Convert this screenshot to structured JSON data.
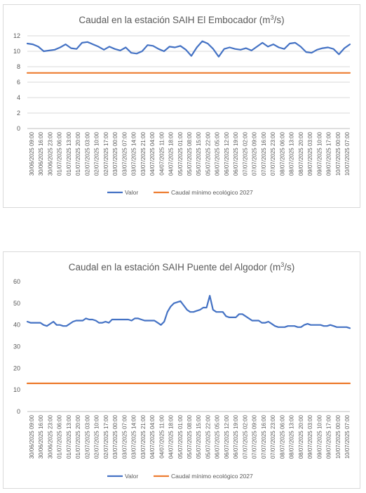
{
  "chart_data": [
    {
      "type": "line",
      "title": "Caudal en la estación SAIH El Embocador (m³/s)",
      "title_main": "Caudal en la estación SAIH El Embocador (m",
      "title_sup": "3",
      "title_end": "/s)",
      "ylim": [
        0,
        12
      ],
      "yticks": [
        "0",
        "2",
        "4",
        "6",
        "8",
        "10",
        "12"
      ],
      "grid": true,
      "legend": "bottom",
      "x_labels": [
        "30/06/2025 09:00",
        "30/06/2025 16:00",
        "30/06/2025 23:00",
        "01/07/2025 06:00",
        "01/07/2025 13:00",
        "01/07/2025 20:00",
        "02/07/2025 03:00",
        "02/07/2025 10:00",
        "02/07/2025 17:00",
        "03/07/2025 00:00",
        "03/07/2025 07:00",
        "03/07/2025 14:00",
        "03/07/2025 21:00",
        "04/07/2025 04:00",
        "04/07/2025 11:00",
        "04/07/2025 18:00",
        "05/07/2025 01:00",
        "05/07/2025 08:00",
        "05/07/2025 15:00",
        "05/07/2025 22:00",
        "06/07/2025 05:00",
        "06/07/2025 12:00",
        "06/07/2025 19:00",
        "07/07/2025 02:00",
        "07/07/2025 09:00",
        "07/07/2025 16:00",
        "07/07/2025 23:00",
        "08/07/2025 06:00",
        "08/07/2025 13:00",
        "08/07/2025 20:00",
        "09/07/2025 03:00",
        "09/07/2025 10:00",
        "09/07/2025 17:00",
        "10/07/2025 00:00",
        "10/07/2025 07:00"
      ],
      "series": [
        {
          "name": "Valor",
          "color": "#4472c4",
          "values": [
            11.0,
            10.9,
            10.6,
            10.0,
            10.1,
            10.2,
            10.5,
            10.9,
            10.4,
            10.3,
            11.1,
            11.2,
            10.9,
            10.6,
            10.2,
            10.6,
            10.3,
            10.1,
            10.5,
            9.8,
            9.7,
            10.0,
            10.8,
            10.7,
            10.3,
            10.0,
            10.6,
            10.5,
            10.7,
            10.2,
            9.4,
            10.5,
            11.3,
            11.0,
            10.3,
            9.3,
            10.3,
            10.5,
            10.3,
            10.2,
            10.4,
            10.1,
            10.6,
            11.1,
            10.6,
            10.9,
            10.5,
            10.3,
            11.0,
            11.1,
            10.6,
            9.9,
            9.8,
            10.2,
            10.4,
            10.5,
            10.3,
            9.6,
            10.4,
            10.9
          ]
        },
        {
          "name": "Caudal mínimo ecológico 2027",
          "color": "#ed7d31",
          "values": [
            7.2,
            7.2
          ]
        }
      ]
    },
    {
      "type": "line",
      "title": "Caudal en la estación SAIH Puente del Algodor (m³/s)",
      "title_main": "Caudal en la estación SAIH Puente del Algodor (m",
      "title_sup": "3",
      "title_end": "/s)",
      "ylim": [
        0,
        60
      ],
      "yticks": [
        "0",
        "10",
        "20",
        "30",
        "40",
        "50",
        "60"
      ],
      "grid": false,
      "legend": "bottom",
      "x_labels": [
        "30/06/2025 09:00",
        "30/06/2025 16:00",
        "30/06/2025 23:00",
        "01/07/2025 06:00",
        "01/07/2025 13:00",
        "01/07/2025 20:00",
        "02/07/2025 03:00",
        "02/07/2025 10:00",
        "02/07/2025 17:00",
        "03/07/2025 00:00",
        "03/07/2025 07:00",
        "03/07/2025 14:00",
        "03/07/2025 21:00",
        "04/07/2025 04:00",
        "04/07/2025 11:00",
        "04/07/2025 18:00",
        "05/07/2025 01:00",
        "05/07/2025 08:00",
        "05/07/2025 15:00",
        "05/07/2025 22:00",
        "06/07/2025 05:00",
        "06/07/2025 12:00",
        "06/07/2025 19:00",
        "07/07/2025 02:00",
        "07/07/2025 09:00",
        "07/07/2025 16:00",
        "07/07/2025 23:00",
        "08/07/2025 06:00",
        "08/07/2025 13:00",
        "08/07/2025 20:00",
        "09/07/2025 03:00",
        "09/07/2025 10:00",
        "09/07/2025 17:00",
        "10/07/2025 00:00",
        "10/07/2025 07:00"
      ],
      "series": [
        {
          "name": "Valor",
          "color": "#4472c4",
          "values": [
            41.5,
            41,
            41,
            41,
            41,
            40,
            39.5,
            40.5,
            41.5,
            40,
            40,
            39.5,
            39.5,
            40.5,
            41.5,
            42,
            42,
            42,
            43,
            42.5,
            42.5,
            42,
            41,
            41,
            41.5,
            41,
            42.5,
            42.5,
            42.5,
            42.5,
            42.5,
            42.5,
            42,
            43,
            43,
            42.5,
            42,
            42,
            42,
            42,
            41,
            40,
            41.5,
            46,
            48.5,
            50,
            50.5,
            51,
            49,
            47,
            46,
            46,
            46.5,
            47,
            48,
            48,
            53.5,
            47,
            46,
            46,
            46,
            44,
            43.5,
            43.5,
            43.5,
            45,
            45,
            44,
            43,
            42,
            42,
            42,
            41,
            41,
            41.5,
            40.5,
            39.5,
            39,
            39,
            39,
            39.5,
            39.5,
            39.5,
            39,
            39,
            40,
            40.5,
            40,
            40,
            40,
            40,
            39.5,
            39.5,
            40,
            39.5,
            39,
            39,
            39,
            39,
            38.5
          ]
        },
        {
          "name": "Caudal mínimo ecológico 2027",
          "color": "#ed7d31",
          "values": [
            13,
            13
          ]
        }
      ]
    }
  ]
}
